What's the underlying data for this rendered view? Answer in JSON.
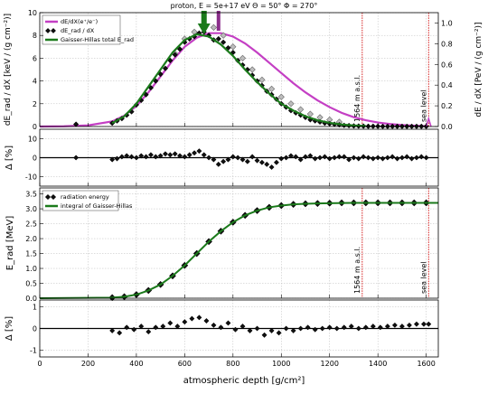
{
  "title": "proton, E = 5e+17 eV Θ = 50° Φ = 270°",
  "xlabel": "atmospheric depth [g/cm²]",
  "colors": {
    "magenta": "#c43fc4",
    "green": "#1b7a1b",
    "darkgreen": "#0d5a0d",
    "gray": "#888888",
    "grid": "#bbbbbb",
    "red": "#d62020",
    "purple_arrow": "#8a2d8a"
  },
  "chart_data": [
    {
      "type": "line",
      "panel": "energy deposit",
      "xlim": [
        0,
        1650
      ],
      "ylim": [
        0,
        10
      ],
      "ylabel": "dE_rad / dX [keV / (g cm⁻²)]",
      "ylabel_right": "dE / dX [PeV / (g cm⁻²)]",
      "ylim_right": [
        0,
        1.1
      ],
      "yticks": [
        0,
        2,
        4,
        6,
        8,
        10
      ],
      "yticks_right": [
        0.0,
        0.2,
        0.4,
        0.6,
        0.8,
        1.0
      ],
      "grid": true,
      "legend": "top-left",
      "legend_entries": [
        "dE/dX(e⁺/e⁻)",
        "dE_rad / dX",
        "Gaisser-Hillas total E_rad"
      ],
      "annotations": [
        "1564 m a.s.l.",
        "sea level"
      ],
      "vlines": [
        1335,
        1610
      ],
      "xmax_green": 680,
      "xmax_magenta": 740,
      "series": [
        {
          "name": "dE/dX(e⁺/e⁻)",
          "x": [
            0,
            100,
            200,
            300,
            350,
            400,
            450,
            500,
            550,
            600,
            650,
            700,
            750,
            800,
            850,
            900,
            950,
            1000,
            1050,
            1100,
            1150,
            1200,
            1250,
            1300,
            1350,
            1400,
            1450,
            1500,
            1550,
            1600
          ],
          "y": [
            0,
            0.02,
            0.1,
            0.45,
            0.95,
            1.8,
            3.0,
            4.4,
            5.8,
            7.0,
            7.8,
            8.2,
            8.2,
            7.9,
            7.3,
            6.5,
            5.6,
            4.7,
            3.8,
            3.0,
            2.3,
            1.7,
            1.2,
            0.82,
            0.55,
            0.35,
            0.22,
            0.13,
            0.07,
            0.03
          ]
        },
        {
          "name": "Gaisser-Hillas total E_rad",
          "x": [
            300,
            350,
            400,
            450,
            500,
            550,
            600,
            650,
            700,
            750,
            800,
            850,
            900,
            950,
            1000,
            1050,
            1100,
            1150,
            1200,
            1250,
            1300,
            1350
          ],
          "y": [
            0.3,
            0.9,
            2.0,
            3.5,
            5.0,
            6.5,
            7.6,
            8.1,
            7.9,
            7.2,
            6.2,
            5.0,
            3.9,
            2.9,
            2.0,
            1.4,
            0.9,
            0.55,
            0.32,
            0.18,
            0.09,
            0.04
          ]
        },
        {
          "name": "dE_rad / dX",
          "x": [
            150,
            300,
            320,
            340,
            360,
            380,
            400,
            420,
            440,
            460,
            480,
            500,
            520,
            540,
            560,
            580,
            600,
            620,
            640,
            660,
            680,
            700,
            720,
            740,
            760,
            780,
            800,
            820,
            840,
            860,
            880,
            900,
            920,
            940,
            960,
            980,
            1000,
            1020,
            1040,
            1060,
            1080,
            1100,
            1120,
            1140,
            1160,
            1180,
            1200,
            1220,
            1240,
            1260,
            1280,
            1300,
            1320,
            1340,
            1360,
            1380,
            1400,
            1420,
            1440,
            1460,
            1480,
            1500,
            1520,
            1540,
            1560,
            1580,
            1600
          ],
          "y": [
            0.2,
            0.3,
            0.5,
            0.7,
            1.0,
            1.3,
            1.9,
            2.3,
            2.8,
            3.4,
            4.0,
            4.6,
            5.1,
            5.8,
            6.3,
            6.8,
            7.4,
            7.7,
            7.9,
            8.2,
            8.3,
            8.0,
            7.6,
            7.7,
            7.4,
            6.9,
            6.5,
            5.8,
            5.4,
            5.0,
            4.5,
            4.0,
            3.6,
            3.1,
            2.8,
            2.4,
            2.0,
            1.7,
            1.4,
            1.2,
            1.0,
            0.8,
            0.6,
            0.5,
            0.4,
            0.3,
            0.25,
            0.2,
            0.15,
            0.1,
            0.08,
            0.05,
            0.04,
            0.03,
            0.02,
            0.02,
            0.02,
            0.01,
            0.01,
            0.01,
            0.01,
            0.01,
            0.01,
            0.01,
            0.01,
            0.01,
            0.01
          ]
        },
        {
          "name": "gray diamonds",
          "x": [
            560,
            600,
            640,
            680,
            720,
            760,
            800,
            840,
            880,
            920,
            960,
            1000,
            1040,
            1080,
            1120,
            1160,
            1200,
            1240
          ],
          "y": [
            6.4,
            7.7,
            8.3,
            8.9,
            8.7,
            8.0,
            7.0,
            6.0,
            5.0,
            4.1,
            3.3,
            2.6,
            2.0,
            1.5,
            1.1,
            0.8,
            0.6,
            0.4
          ]
        }
      ]
    },
    {
      "type": "scatter",
      "panel": "residual energy deposit",
      "xlim": [
        0,
        1650
      ],
      "ylim": [
        -15,
        15
      ],
      "ylabel": "Δ [%]",
      "yticks": [
        -10,
        0,
        10
      ],
      "series": [
        {
          "name": "residual",
          "x": [
            150,
            300,
            320,
            340,
            360,
            380,
            400,
            420,
            440,
            460,
            480,
            500,
            520,
            540,
            560,
            580,
            600,
            620,
            640,
            660,
            680,
            700,
            720,
            740,
            760,
            780,
            800,
            820,
            840,
            860,
            880,
            900,
            920,
            940,
            960,
            980,
            1000,
            1020,
            1040,
            1060,
            1080,
            1100,
            1120,
            1140,
            1160,
            1180,
            1200,
            1220,
            1240,
            1260,
            1280,
            1300,
            1320,
            1340,
            1360,
            1380,
            1400,
            1420,
            1440,
            1460,
            1480,
            1500,
            1520,
            1540,
            1560,
            1580,
            1600
          ],
          "y": [
            0,
            -1,
            -0.5,
            0.5,
            1,
            0.5,
            0,
            1,
            0.5,
            1.5,
            0.5,
            1,
            2,
            1.5,
            2,
            1,
            0.5,
            1.5,
            2.5,
            3.5,
            1.5,
            0,
            -1,
            -3.5,
            -2,
            -1,
            0.5,
            0,
            -1,
            -2,
            0.5,
            -1.5,
            -2.5,
            -3.5,
            -5,
            -2.5,
            -0.5,
            0,
            1,
            0.5,
            -1,
            0.5,
            1,
            -0.5,
            0,
            0.5,
            -0.5,
            0,
            0.5,
            0.5,
            -1,
            0,
            -0.5,
            0.5,
            0,
            -0.5,
            0,
            -0.5,
            0,
            0.5,
            -0.5,
            0,
            0.5,
            -0.5,
            0,
            0.5,
            0
          ]
        }
      ]
    },
    {
      "type": "line",
      "panel": "radiation energy",
      "xlim": [
        0,
        1650
      ],
      "ylim": [
        0,
        3.7
      ],
      "ylabel": "E_rad [MeV]",
      "yticks": [
        0.0,
        0.5,
        1.0,
        1.5,
        2.0,
        2.5,
        3.0,
        3.5
      ],
      "grid": true,
      "legend": "top-left",
      "legend_entries": [
        "radiation energy",
        "integral of Gaisser-Hillas"
      ],
      "annotations": [
        "1564 m a.s.l.",
        "sea level"
      ],
      "vlines": [
        1335,
        1610
      ],
      "series": [
        {
          "name": "integral of Gaisser-Hillas",
          "x": [
            0,
            300,
            350,
            400,
            450,
            500,
            550,
            600,
            650,
            700,
            750,
            800,
            850,
            900,
            950,
            1000,
            1050,
            1100,
            1150,
            1200,
            1300,
            1400,
            1500,
            1650
          ],
          "y": [
            0,
            0.02,
            0.05,
            0.12,
            0.26,
            0.46,
            0.75,
            1.1,
            1.5,
            1.9,
            2.25,
            2.55,
            2.78,
            2.94,
            3.05,
            3.11,
            3.15,
            3.17,
            3.18,
            3.19,
            3.2,
            3.2,
            3.2,
            3.2
          ]
        },
        {
          "name": "radiation energy",
          "x": [
            300,
            350,
            400,
            450,
            500,
            550,
            600,
            650,
            700,
            750,
            800,
            850,
            900,
            950,
            1000,
            1050,
            1100,
            1150,
            1200,
            1250,
            1300,
            1350,
            1400,
            1450,
            1500,
            1550,
            1600
          ],
          "y": [
            0.02,
            0.05,
            0.12,
            0.26,
            0.46,
            0.75,
            1.1,
            1.5,
            1.9,
            2.25,
            2.55,
            2.78,
            2.94,
            3.05,
            3.11,
            3.15,
            3.17,
            3.18,
            3.19,
            3.2,
            3.2,
            3.2,
            3.2,
            3.2,
            3.2,
            3.2,
            3.2
          ]
        }
      ]
    },
    {
      "type": "scatter",
      "panel": "residual radiation energy",
      "xlim": [
        0,
        1650
      ],
      "ylim": [
        -1.3,
        1.3
      ],
      "ylabel": "Δ [%]",
      "yticks": [
        -1,
        0,
        1
      ],
      "series": [
        {
          "name": "residual",
          "x": [
            300,
            330,
            360,
            390,
            420,
            450,
            480,
            510,
            540,
            570,
            600,
            630,
            660,
            690,
            720,
            750,
            780,
            810,
            840,
            870,
            900,
            930,
            960,
            990,
            1020,
            1050,
            1080,
            1110,
            1140,
            1170,
            1200,
            1230,
            1260,
            1290,
            1320,
            1350,
            1380,
            1410,
            1440,
            1470,
            1500,
            1530,
            1560,
            1590,
            1610
          ],
          "y": [
            -0.1,
            -0.2,
            0.05,
            -0.05,
            0.1,
            -0.15,
            0.05,
            0.1,
            0.25,
            0.1,
            0.3,
            0.45,
            0.5,
            0.35,
            0.15,
            0.05,
            0.25,
            -0.05,
            0.1,
            -0.1,
            0.0,
            -0.3,
            -0.1,
            -0.2,
            0.0,
            -0.1,
            0.0,
            0.05,
            -0.05,
            0.0,
            0.05,
            0.0,
            0.05,
            0.1,
            0.0,
            0.05,
            0.1,
            0.05,
            0.1,
            0.15,
            0.1,
            0.15,
            0.2,
            0.2,
            0.2
          ]
        }
      ]
    }
  ],
  "axes": {
    "xticks": [
      0,
      200,
      400,
      600,
      800,
      1000,
      1200,
      1400,
      1600
    ]
  }
}
